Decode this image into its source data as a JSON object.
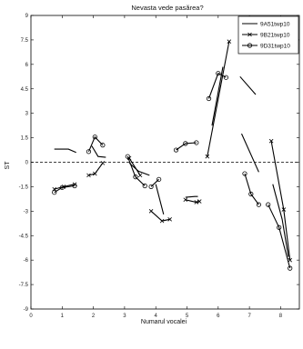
{
  "chart_data": {
    "type": "line",
    "title": "Nevasta vede pasărea?",
    "xlabel": "Numarul vocalei",
    "ylabel": "ST",
    "xlim": [
      0,
      8.6
    ],
    "ylim": [
      -9,
      9
    ],
    "xticks": [
      "0",
      "1",
      "2",
      "3",
      "4",
      "5",
      "6",
      "7",
      "8"
    ],
    "yticks": [
      "9",
      "7.5",
      "6",
      "4.5",
      "3",
      "1.5",
      "0",
      "-1.5",
      "-3",
      "-4.5",
      "-6",
      "-7.5",
      "-9"
    ],
    "zero_line": "dashed",
    "grid": false,
    "legend_position": "top-right",
    "series": [
      {
        "name": "9A51twp10",
        "marker": "none",
        "segments": [
          [
            [
              0.75,
              0.8
            ],
            [
              1.2,
              0.8
            ],
            [
              1.45,
              0.6
            ]
          ],
          [
            [
              1.95,
              1.0
            ],
            [
              2.15,
              0.35
            ],
            [
              2.4,
              0.3
            ]
          ],
          [
            [
              3.15,
              -0.05
            ],
            [
              3.45,
              -0.55
            ],
            [
              3.8,
              -0.8
            ]
          ],
          [
            [
              4.0,
              -1.35
            ],
            [
              4.25,
              -3.2
            ]
          ],
          [
            [
              4.95,
              -2.15
            ],
            [
              5.25,
              -2.1
            ],
            [
              5.35,
              -2.1
            ]
          ],
          [
            [
              5.8,
              2.25
            ],
            [
              6.15,
              5.85
            ]
          ],
          [
            [
              6.75,
              1.75
            ],
            [
              7.3,
              -0.6
            ]
          ],
          [
            [
              6.7,
              5.25
            ],
            [
              7.2,
              4.15
            ]
          ],
          [
            [
              7.75,
              -1.35
            ],
            [
              8.05,
              -3.5
            ],
            [
              8.25,
              -5.8
            ]
          ]
        ]
      },
      {
        "name": "9B21twp10",
        "marker": "x",
        "segments": [
          [
            [
              0.75,
              -1.65
            ],
            [
              1.05,
              -1.5
            ],
            [
              1.4,
              -1.35
            ]
          ],
          [
            [
              1.85,
              -0.8
            ],
            [
              2.05,
              -0.7
            ],
            [
              2.3,
              -0.05
            ]
          ],
          [
            [
              3.15,
              0.25
            ],
            [
              3.5,
              -0.8
            ]
          ],
          [
            [
              3.85,
              -3.0
            ],
            [
              4.2,
              -3.6
            ],
            [
              4.45,
              -3.5
            ]
          ],
          [
            [
              4.95,
              -2.3
            ],
            [
              5.3,
              -2.45
            ],
            [
              5.4,
              -2.4
            ]
          ],
          [
            [
              5.65,
              0.35
            ],
            [
              6.35,
              7.4
            ]
          ],
          [
            [
              7.7,
              1.3
            ],
            [
              8.1,
              -2.9
            ],
            [
              8.3,
              -6.0
            ]
          ]
        ]
      },
      {
        "name": "9D31twp10",
        "marker": "o",
        "segments": [
          [
            [
              0.75,
              -1.85
            ],
            [
              1.0,
              -1.55
            ],
            [
              1.4,
              -1.45
            ]
          ],
          [
            [
              1.85,
              0.65
            ],
            [
              2.05,
              1.55
            ],
            [
              2.3,
              1.05
            ]
          ],
          [
            [
              3.1,
              0.35
            ],
            [
              3.35,
              -0.9
            ],
            [
              3.65,
              -1.45
            ]
          ],
          [
            [
              3.85,
              -1.5
            ],
            [
              4.1,
              -1.05
            ]
          ],
          [
            [
              4.65,
              0.75
            ],
            [
              4.95,
              1.15
            ],
            [
              5.3,
              1.2
            ]
          ],
          [
            [
              5.7,
              3.9
            ],
            [
              6.0,
              5.45
            ],
            [
              6.25,
              5.2
            ]
          ],
          [
            [
              6.85,
              -0.7
            ],
            [
              7.05,
              -1.95
            ],
            [
              7.3,
              -2.6
            ]
          ],
          [
            [
              7.6,
              -2.6
            ],
            [
              7.95,
              -4.0
            ],
            [
              8.3,
              -6.5
            ]
          ]
        ]
      }
    ]
  }
}
